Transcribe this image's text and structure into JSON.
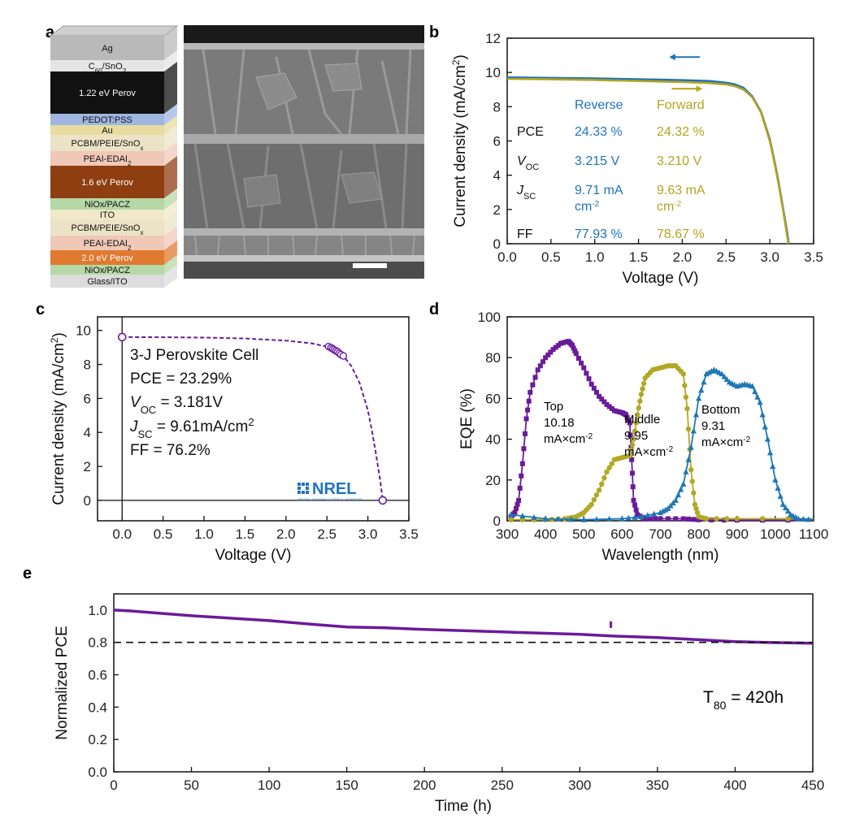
{
  "panel_labels": [
    "a",
    "b",
    "c",
    "d",
    "e"
  ],
  "colors": {
    "reverse": "#1e73be",
    "forward": "#b4a31e",
    "purple": "#6a1b9a",
    "olive": "#b2a826",
    "blue": "#1f77b4",
    "nrel": "#1e73be",
    "axis": "#111111"
  },
  "panel_a": {
    "layers": [
      {
        "label": "Ag",
        "color": "#b9b9b9"
      },
      {
        "label": "C60/SnO2",
        "color": "#e5e5e5"
      },
      {
        "label": "1.22 eV Perov",
        "color": "#111111"
      },
      {
        "label": "PEDOT:PSS",
        "color": "#9fb7e0"
      },
      {
        "label": "Au",
        "color": "#e8dba0"
      },
      {
        "label": "PCBM/PEIE/SnOx",
        "color": "#ece3c6"
      },
      {
        "label": "PEAI-EDAI2",
        "color": "#f0c8b8"
      },
      {
        "label": "1.6 eV Perov",
        "color": "#8e3e10"
      },
      {
        "label": "NiOx/PACZ",
        "color": "#b6d8a6"
      },
      {
        "label": "ITO",
        "color": "#efe8c9"
      },
      {
        "label": "PCBM/PEIE/SnOx",
        "color": "#ece3c6"
      },
      {
        "label": "PEAI-EDAI2",
        "color": "#f0c8b8"
      },
      {
        "label": "2.0 eV Perov",
        "color": "#e07a30"
      },
      {
        "label": "NiOx/PACZ",
        "color": "#b6d8a6"
      },
      {
        "label": "Glass/ITO",
        "color": "#dcdcdc"
      }
    ],
    "sem_image": "cross-sectional SEM micrograph",
    "scale_bar_color": "#ffffff"
  },
  "chart_data": [
    {
      "id": "b",
      "type": "line",
      "xlabel": "Voltage (V)",
      "ylabel": "Current density (mA/cm²)",
      "xlim": [
        0,
        3.5
      ],
      "ylim": [
        0,
        12
      ],
      "xticks": [
        "0.0",
        "0.5",
        "1.0",
        "1.5",
        "2.0",
        "2.5",
        "3.0",
        "3.5"
      ],
      "yticks": [
        "0",
        "2",
        "4",
        "6",
        "8",
        "10",
        "12"
      ],
      "series": [
        {
          "name": "Reverse",
          "color": "#1e73be",
          "x": [
            0,
            0.5,
            1.0,
            1.5,
            2.0,
            2.3,
            2.5,
            2.6,
            2.7,
            2.8,
            2.9,
            3.0,
            3.05,
            3.1,
            3.15,
            3.2,
            3.215
          ],
          "y": [
            9.71,
            9.68,
            9.65,
            9.6,
            9.55,
            9.5,
            9.4,
            9.3,
            9.1,
            8.6,
            7.7,
            6.1,
            4.9,
            3.6,
            2.1,
            0.6,
            0
          ]
        },
        {
          "name": "Forward",
          "color": "#b4a31e",
          "x": [
            0,
            0.5,
            1.0,
            1.5,
            2.0,
            2.3,
            2.5,
            2.6,
            2.7,
            2.8,
            2.9,
            3.0,
            3.05,
            3.1,
            3.15,
            3.2,
            3.21
          ],
          "y": [
            9.63,
            9.6,
            9.56,
            9.5,
            9.44,
            9.38,
            9.3,
            9.2,
            9.0,
            8.55,
            7.65,
            6.0,
            4.8,
            3.5,
            2.0,
            0.4,
            0
          ]
        }
      ],
      "table": {
        "header": [
          "",
          "Reverse",
          "Forward"
        ],
        "rows": [
          {
            "param": "PCE",
            "sub": "",
            "reverse": "24.33 %",
            "forward": "24.32 %"
          },
          {
            "param": "V",
            "sub": "OC",
            "reverse": "3.215 V",
            "forward": "3.210 V"
          },
          {
            "param": "J",
            "sub": "SC",
            "reverse": "9.71 mA cm-2",
            "forward": "9.63 mA cm-2"
          },
          {
            "param": "FF",
            "sub": "",
            "reverse": "77.93 %",
            "forward": "78.67 %"
          }
        ]
      }
    },
    {
      "id": "c",
      "type": "line",
      "xlabel": "Voltage (V)",
      "ylabel": "Current density (mA/cm²)",
      "xlim": [
        -0.3,
        3.5
      ],
      "ylim": [
        -1.2,
        10.8
      ],
      "xticks": [
        "0.0",
        "0.5",
        "1.0",
        "1.5",
        "2.0",
        "2.5",
        "3.0",
        "3.5"
      ],
      "yticks": [
        "0",
        "2",
        "4",
        "6",
        "8",
        "10"
      ],
      "series": [
        {
          "name": "3-J Perovskite Cell",
          "color": "#6a1b9a",
          "x": [
            0,
            0.5,
            1.0,
            1.5,
            2.0,
            2.3,
            2.5,
            2.6,
            2.7,
            2.8,
            2.9,
            3.0,
            3.05,
            3.1,
            3.15,
            3.181
          ],
          "y": [
            9.61,
            9.6,
            9.58,
            9.53,
            9.4,
            9.25,
            9.05,
            8.85,
            8.5,
            7.9,
            6.9,
            5.3,
            4.1,
            2.7,
            1.2,
            0
          ]
        },
        {
          "name": "MPP points",
          "color": "#6a1b9a",
          "x": [
            2.52,
            2.55,
            2.57,
            2.59,
            2.61,
            2.63,
            2.65,
            2.67,
            2.7
          ],
          "y": [
            9.05,
            8.98,
            8.92,
            8.86,
            8.8,
            8.74,
            8.66,
            8.58,
            8.5
          ]
        }
      ],
      "annotation": [
        "3-J Perovskite Cell",
        "PCE = 23.29%",
        "V",
        "OC",
        " = 3.181V",
        "J",
        "SC",
        " = 9.61mA/cm",
        "2",
        "FF = 76.2%"
      ],
      "logo": "NREL",
      "logo_tagline": "NATIONAL RENEWABLE ENERGY LABORATORY"
    },
    {
      "id": "d",
      "type": "line",
      "xlabel": "Wavelength (nm)",
      "ylabel": "EQE (%)",
      "xlim": [
        300,
        1100
      ],
      "ylim": [
        0,
        100
      ],
      "xticks": [
        "300",
        "400",
        "500",
        "600",
        "700",
        "800",
        "900",
        "1000",
        "1100"
      ],
      "yticks": [
        "0",
        "20",
        "40",
        "60",
        "80",
        "100"
      ],
      "series": [
        {
          "name": "Top",
          "color": "#6a1b9a",
          "x": [
            310,
            320,
            330,
            340,
            350,
            360,
            380,
            400,
            420,
            440,
            460,
            470,
            480,
            500,
            520,
            540,
            560,
            580,
            600,
            610,
            620,
            625,
            630,
            640,
            660,
            700,
            760,
            800,
            900,
            1100
          ],
          "y": [
            2,
            4,
            10,
            28,
            50,
            63,
            74,
            80,
            84,
            87,
            88,
            86,
            82,
            75,
            67,
            61,
            57,
            54,
            53,
            52,
            48,
            30,
            10,
            3,
            1,
            1,
            1,
            0.5,
            0.3,
            0.3
          ]
        },
        {
          "name": "Middle",
          "color": "#b2a826",
          "x": [
            310,
            400,
            450,
            480,
            500,
            520,
            540,
            560,
            580,
            600,
            620,
            630,
            640,
            650,
            660,
            680,
            700,
            720,
            740,
            760,
            770,
            780,
            790,
            800,
            820,
            900,
            1100
          ],
          "y": [
            0.5,
            0.5,
            1,
            2,
            4,
            8,
            15,
            24,
            30,
            31,
            32,
            40,
            52,
            62,
            70,
            74,
            75,
            76,
            76,
            72,
            55,
            25,
            8,
            2,
            1,
            1,
            1
          ]
        },
        {
          "name": "Bottom",
          "color": "#1f77b4",
          "x": [
            310,
            400,
            500,
            600,
            650,
            700,
            720,
            740,
            760,
            780,
            800,
            820,
            840,
            860,
            880,
            900,
            920,
            940,
            960,
            980,
            1000,
            1020,
            1040,
            1060,
            1100
          ],
          "y": [
            3,
            1,
            0.5,
            1,
            2,
            4,
            6,
            10,
            18,
            36,
            60,
            72,
            74,
            72,
            68,
            66,
            67,
            66,
            58,
            40,
            20,
            8,
            3,
            1,
            0.5
          ]
        }
      ],
      "labels": {
        "top": [
          "Top",
          "10.18",
          "mA×cm",
          "-2"
        ],
        "middle": [
          "Middle",
          "9.95",
          "mA×cm",
          "-2"
        ],
        "bottom": [
          "Bottom",
          "9.31",
          "mA×cm",
          "-2"
        ]
      }
    },
    {
      "id": "e",
      "type": "line",
      "xlabel": "Time (h)",
      "ylabel": "Normalized PCE",
      "xlim": [
        0,
        450
      ],
      "ylim": [
        0,
        1.1
      ],
      "xticks": [
        "0",
        "50",
        "100",
        "150",
        "200",
        "250",
        "300",
        "350",
        "400",
        "450"
      ],
      "yticks": [
        "0.0",
        "0.2",
        "0.4",
        "0.6",
        "0.8",
        "1.0"
      ],
      "reference_line": 0.8,
      "series": [
        {
          "name": "Normalized PCE",
          "color": "#6a1b9a",
          "x": [
            0,
            10,
            30,
            50,
            75,
            100,
            130,
            150,
            175,
            200,
            250,
            300,
            320,
            350,
            380,
            400,
            420,
            450
          ],
          "y": [
            1.0,
            0.995,
            0.98,
            0.965,
            0.95,
            0.935,
            0.91,
            0.895,
            0.89,
            0.88,
            0.865,
            0.85,
            0.84,
            0.83,
            0.815,
            0.805,
            0.8,
            0.795
          ]
        }
      ],
      "outlier": {
        "x": 320,
        "y": 0.91
      },
      "annotation": [
        "T",
        "80",
        " = 420h"
      ]
    }
  ]
}
